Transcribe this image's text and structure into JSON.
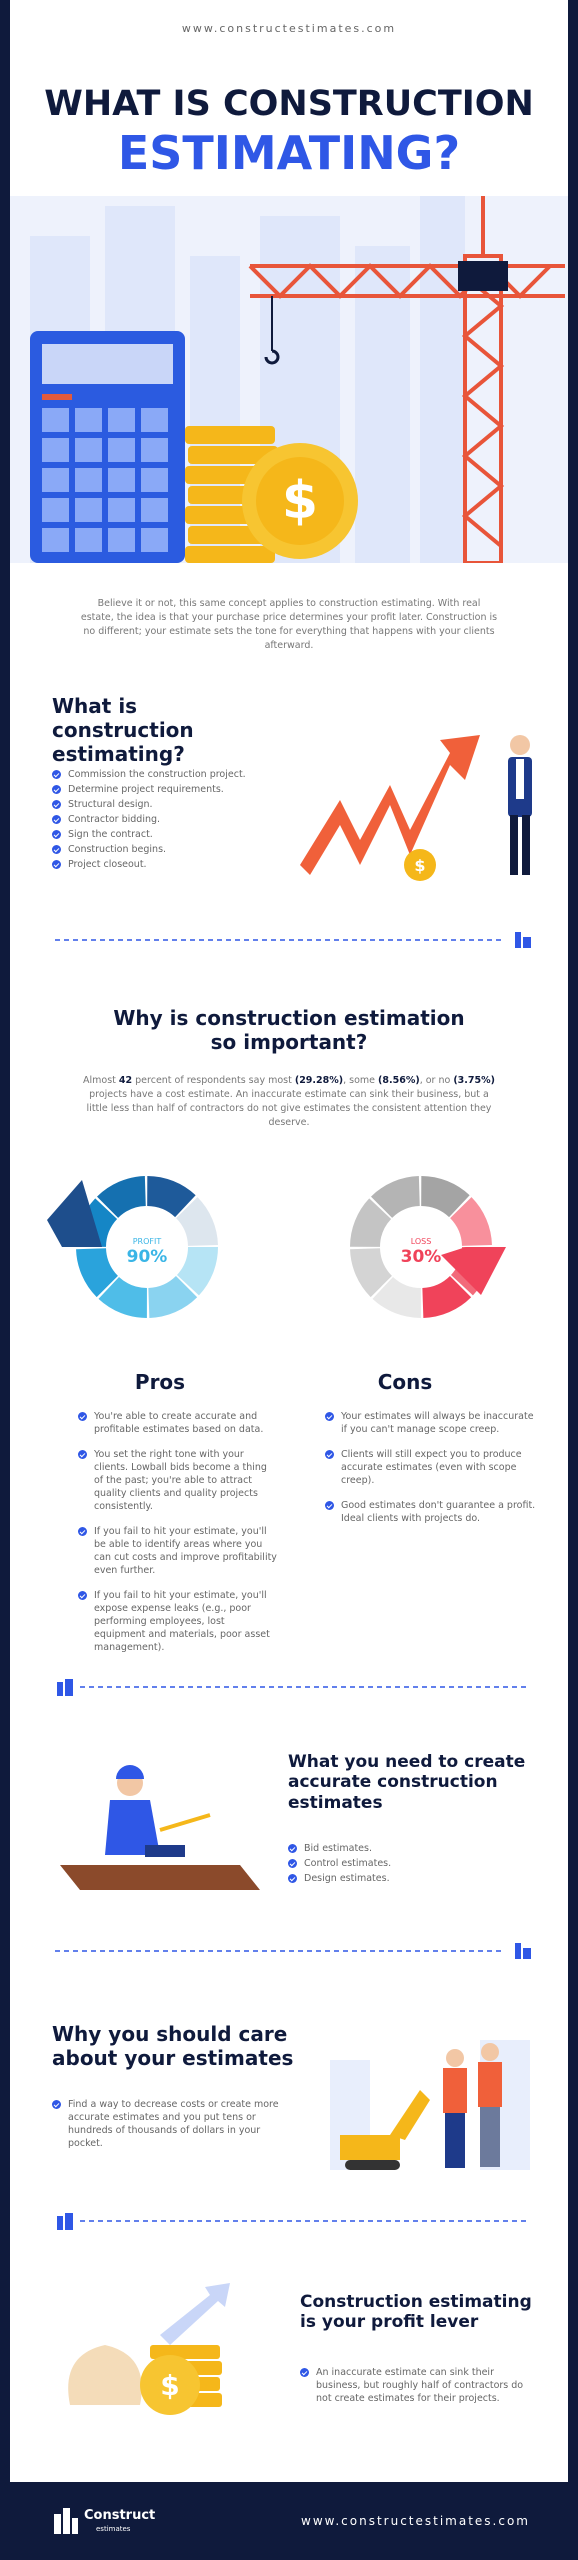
{
  "header": {
    "url": "www.constructestimates.com",
    "title_line1": "WHAT IS CONSTRUCTION",
    "title_line2": "ESTIMATING?"
  },
  "intro": "Believe it or not, this same concept applies to construction estimating. With real estate, the idea is that your purchase price determines your profit later. Construction is no different; your estimate sets the tone for everything that happens with your clients afterward.",
  "section1": {
    "heading": "What is construction estimating?",
    "items": [
      "Commission the construction project.",
      "Determine project requirements.",
      "Structural design.",
      "Contractor bidding.",
      "Sign the contract.",
      "Construction begins.",
      "Project closeout."
    ]
  },
  "section2": {
    "heading": "Why is construction estimation so important?",
    "paragraph": [
      "Almost ",
      "42",
      " percent of respondents say most ",
      "(29.28%)",
      ", some ",
      "(8.56%)",
      ", or no ",
      "(3.75%)",
      " projects have a cost estimate. An inaccurate estimate can sink their business, but a little less than half of contractors do not give estimates the consistent attention they deserve."
    ],
    "profit": {
      "label": "PROFIT",
      "value": "90%"
    },
    "loss": {
      "label": "LOSS",
      "value": "30%"
    },
    "pros": {
      "heading": "Pros",
      "items": [
        "You're able to create accurate and profitable estimates based on data.",
        "You set the right tone with your clients. Lowball bids become a thing of the past; you're able to attract quality clients and quality projects consistently.",
        "If you fail to hit your estimate, you'll be able to identify areas where you can cut costs and improve profitability even further.",
        "If you fail to hit your estimate, you'll expose expense leaks (e.g., poor performing employees, lost equipment and materials, poor asset management)."
      ]
    },
    "cons": {
      "heading": "Cons",
      "items": [
        "Your estimates will always be inaccurate if you can't manage scope creep.",
        "Clients will still expect you to produce accurate estimates (even with scope creep).",
        "Good estimates don't guarantee a profit. Ideal clients with projects do."
      ]
    }
  },
  "section3": {
    "heading": "What you need to create accurate construction estimates",
    "items": [
      "Bid estimates.",
      "Control estimates.",
      "Design estimates."
    ]
  },
  "section4": {
    "heading": "Why you should care about your estimates",
    "items": [
      "Find a way to decrease costs or create more accurate estimates and you put tens or hundreds of thousands of dollars in your pocket."
    ]
  },
  "section5": {
    "heading": "Construction estimating is your profit lever",
    "items": [
      "An inaccurate estimate can sink their business, but roughly half of contractors do not create estimates for their projects."
    ]
  },
  "footer": {
    "logo_main": "Construct",
    "logo_sub": "estimates",
    "url": "www.constructestimates.com"
  }
}
